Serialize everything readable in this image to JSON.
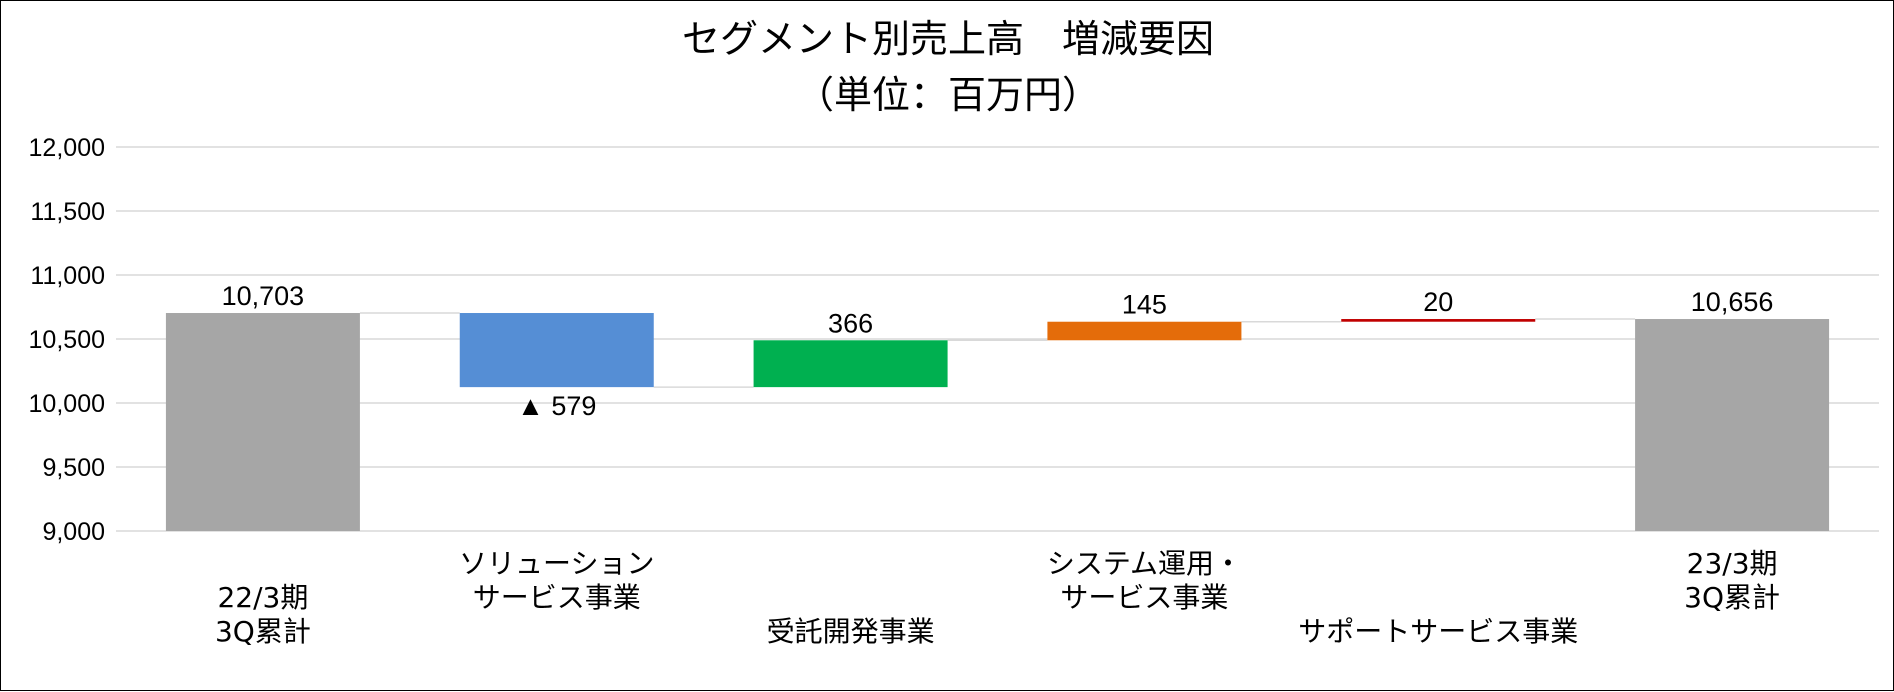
{
  "chart_data": {
    "type": "bar",
    "title": "セグメント別売上高　増減要因",
    "subtitle": "（単位：百万円）",
    "ylim": [
      9000,
      12000
    ],
    "yticks": [
      "9,000",
      "9,500",
      "10,000",
      "10,500",
      "11,000",
      "11,500",
      "12,000"
    ],
    "grid": true,
    "categories": [
      [
        "22/3期",
        "3Q累計"
      ],
      [
        "ソリューション",
        "サービス事業"
      ],
      [
        "受託開発事業"
      ],
      [
        "システム運用・",
        "サービス事業"
      ],
      [
        "サポートサービス事業"
      ],
      [
        "23/3期",
        "3Q累計"
      ]
    ],
    "bars": [
      {
        "kind": "total",
        "start": 9000,
        "end": 10703,
        "label": "10,703",
        "color": "#a6a6a6"
      },
      {
        "kind": "delta",
        "start": 10703,
        "end": 10124,
        "label": "▲ 579",
        "color": "#558ed5"
      },
      {
        "kind": "delta",
        "start": 10124,
        "end": 10490,
        "label": "366",
        "color": "#00b050"
      },
      {
        "kind": "delta",
        "start": 10490,
        "end": 10635,
        "label": "145",
        "color": "#e46c0a"
      },
      {
        "kind": "delta",
        "start": 10635,
        "end": 10656,
        "label": "20",
        "color": "#c00000"
      },
      {
        "kind": "total",
        "start": 9000,
        "end": 10656,
        "label": "10,656",
        "color": "#a6a6a6"
      }
    ]
  }
}
